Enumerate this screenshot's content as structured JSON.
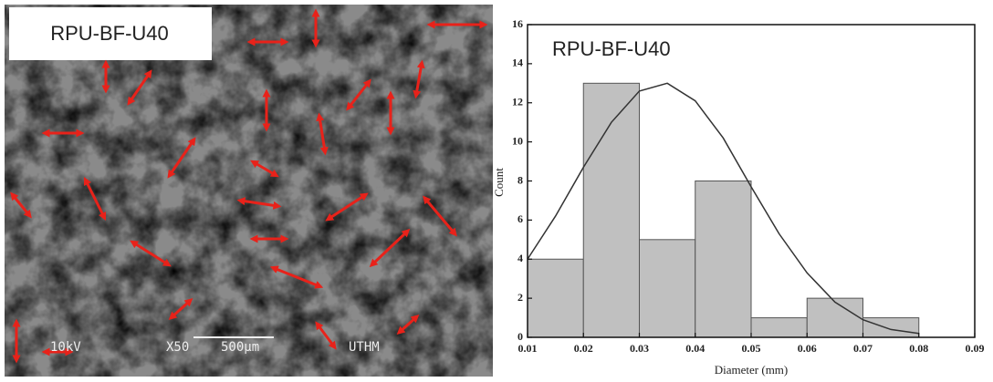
{
  "sem": {
    "label": "RPU-BF-U40",
    "voltage": "10kV",
    "magnification": "X50",
    "scale": "500µm",
    "institution": "UTHM"
  },
  "chart_data": {
    "type": "histogram",
    "title": "RPU-BF-U40",
    "x_label": "Diameter (mm)",
    "y_label": "Count",
    "bins": [
      0.01,
      0.02,
      0.03,
      0.04,
      0.05,
      0.06,
      0.07,
      0.08
    ],
    "values": [
      4,
      13,
      5,
      8,
      1,
      2,
      1
    ],
    "color": "#c0c0c0",
    "fit": {
      "x": [
        0.01,
        0.015,
        0.02,
        0.025,
        0.03,
        0.035,
        0.04,
        0.045,
        0.05,
        0.055,
        0.06,
        0.065,
        0.07,
        0.075,
        0.08
      ],
      "values": [
        4.0,
        6.2,
        8.7,
        11.0,
        12.6,
        13.0,
        12.1,
        10.2,
        7.7,
        5.3,
        3.3,
        1.8,
        0.9,
        0.4,
        0.2
      ],
      "color": "#333333"
    },
    "xlim": [
      0.01,
      0.09
    ],
    "xticks": [
      0.01,
      0.02,
      0.03,
      0.04,
      0.05,
      0.06,
      0.07,
      0.08,
      0.09
    ],
    "ylim": [
      0,
      16
    ],
    "yticks": [
      0,
      2,
      4,
      6,
      8,
      10,
      12,
      14,
      16
    ]
  }
}
